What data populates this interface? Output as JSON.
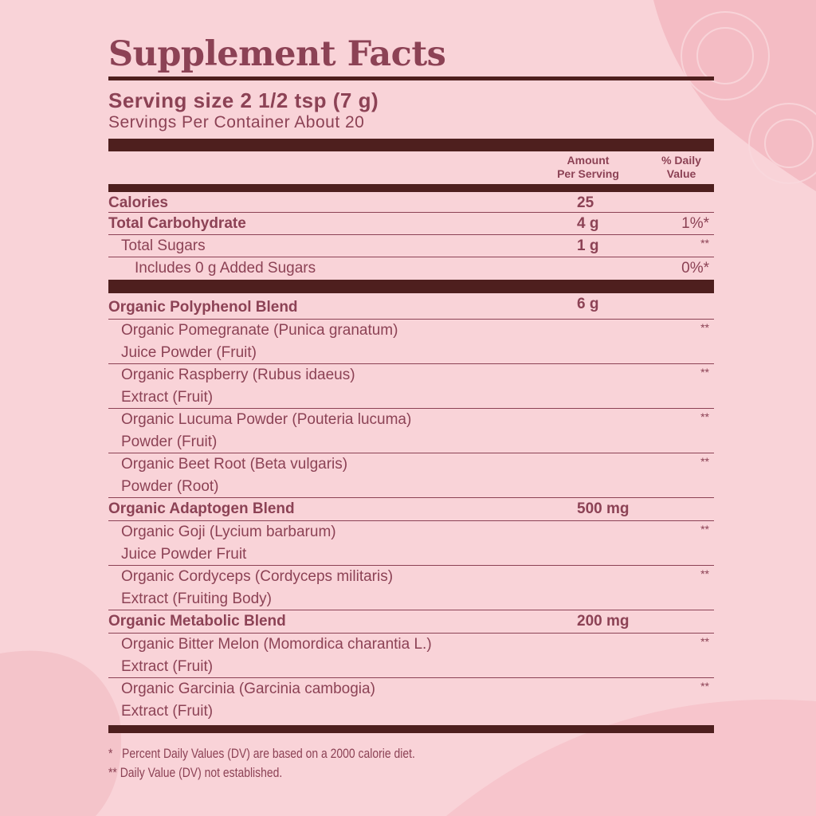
{
  "title": "Supplement Facts",
  "serving_size": "Serving size 2 1/2 tsp (7 g)",
  "servings_per_container": "Servings Per Container About 20",
  "header": {
    "amount_line1": "Amount",
    "amount_line2": "Per Serving",
    "dv_line1": "% Daily",
    "dv_line2": "Value"
  },
  "rows": [
    {
      "name": "Calories",
      "amount": "25",
      "dv": "",
      "style": "b"
    },
    {
      "name": "Total Carbohydrate",
      "amount": "4 g",
      "dv": "1%*",
      "style": "b"
    },
    {
      "name": "Total Sugars",
      "amount": "1 g",
      "dv": "**",
      "style": "i1"
    },
    {
      "name": "Includes 0 g Added Sugars",
      "amount": "",
      "dv": "0%*",
      "style": "i2"
    }
  ],
  "blends": [
    {
      "name": "Organic Polyphenol Blend",
      "amount": "6 g",
      "items": [
        {
          "line1": "Organic Pomegranate (Punica granatum)",
          "line2": "Juice Powder (Fruit)",
          "dv": "**"
        },
        {
          "line1": "Organic Raspberry (Rubus idaeus)",
          "line2": "Extract (Fruit)",
          "dv": "**"
        },
        {
          "line1": "Organic Lucuma Powder (Pouteria lucuma)",
          "line2": "Powder (Fruit)",
          "dv": "**"
        },
        {
          "line1": "Organic Beet Root (Beta vulgaris)",
          "line2": "Powder (Root)",
          "dv": "**"
        }
      ]
    },
    {
      "name": "Organic Adaptogen Blend",
      "amount": "500 mg",
      "items": [
        {
          "line1": "Organic Goji (Lycium barbarum)",
          "line2": "Juice Powder Fruit",
          "dv": "**"
        },
        {
          "line1": "Organic Cordyceps (Cordyceps militaris)",
          "line2": "Extract (Fruiting Body)",
          "dv": "**"
        }
      ]
    },
    {
      "name": "Organic Metabolic Blend",
      "amount": "200 mg",
      "items": [
        {
          "line1": "Organic Bitter Melon (Momordica charantia L.)",
          "line2": "Extract (Fruit)",
          "dv": "**"
        },
        {
          "line1": "Organic Garcinia (Garcinia cambogia)",
          "line2": "Extract (Fruit)",
          "dv": "**"
        }
      ]
    }
  ],
  "footnotes": [
    "*   Percent Daily Values (DV) are based on a 2000 calorie diet.",
    "** Daily Value (DV) not established."
  ],
  "colors": {
    "background": "#f9d3d8",
    "text": "#8c4255",
    "rule": "#4e1f1e"
  }
}
